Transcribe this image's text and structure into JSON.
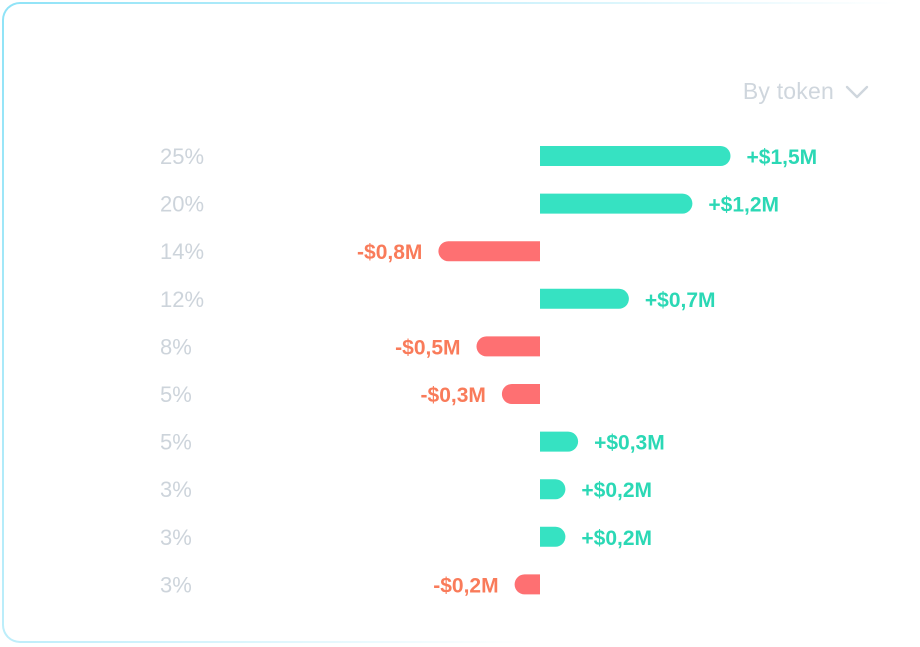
{
  "filter": {
    "label": "By token",
    "icon": "chevron-down-icon"
  },
  "colors": {
    "positive": "#36e2c2",
    "negative": "#fe7072",
    "percent_text": "#cdd4db",
    "positive_text": "#2bd8b5",
    "negative_text": "#f97b5a"
  },
  "chart_data": {
    "type": "bar",
    "orientation": "horizontal",
    "categories": [
      "25%",
      "20%",
      "14%",
      "12%",
      "8%",
      "5%",
      "5%",
      "3%",
      "3%",
      "3%"
    ],
    "values": [
      1.5,
      1.2,
      -0.8,
      0.7,
      -0.5,
      -0.3,
      0.3,
      0.2,
      0.2,
      -0.2
    ],
    "labels": [
      "+$1,5M",
      "+$1,2M",
      "-$0,8M",
      "+$0,7M",
      "-$0,5M",
      "-$0,3M",
      "+$0,3M",
      "+$0,2M",
      "+$0,2M",
      "-$0,2M"
    ],
    "unit": "$M",
    "grid": false
  }
}
